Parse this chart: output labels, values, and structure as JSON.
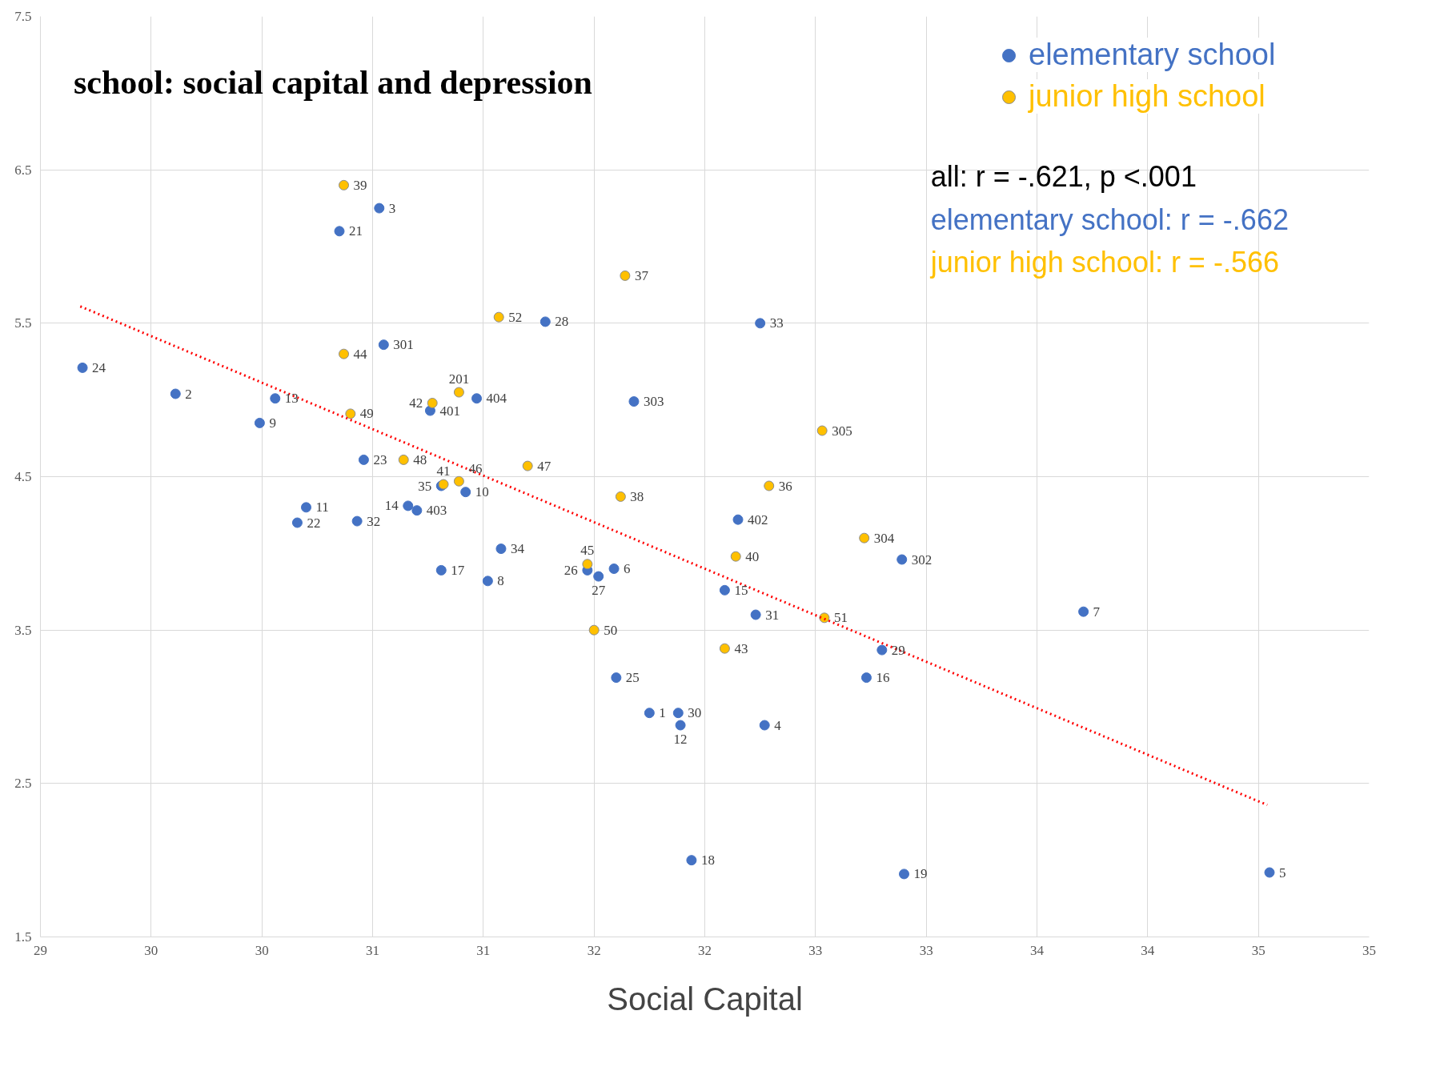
{
  "chart_data": {
    "type": "scatter",
    "title": "school: social capital and depression",
    "xlabel": "Social Capital",
    "xlim": [
      29,
      35
    ],
    "ylim": [
      1.5,
      7.5
    ],
    "xticks": [
      29,
      {
        "value": 29.5,
        "label": "30"
      },
      30,
      {
        "value": 30.5,
        "label": "31"
      },
      31,
      {
        "value": 31.5,
        "label": "32"
      },
      32,
      {
        "value": 32.5,
        "label": "33"
      },
      33,
      {
        "value": 33.5,
        "label": "34"
      },
      34,
      {
        "value": 34.5,
        "label": "35"
      },
      35
    ],
    "yticks": [
      1.5,
      2.5,
      3.5,
      4.5,
      5.5,
      6.5,
      7.5
    ],
    "grid": true,
    "legend": "top right",
    "annotations": [
      "all: r = -.621, p <.001",
      "elementary school: r = -.662",
      "junior high school: r = -.566",
      {
        "text": "24",
        "x": 29.19,
        "y": 5.21
      },
      {
        "text": "2",
        "x": 29.61,
        "y": 5.04
      },
      {
        "text": "13",
        "x": 30.06,
        "y": 5.01
      },
      {
        "text": "9",
        "x": 29.99,
        "y": 4.85
      },
      {
        "text": "3",
        "x": 30.53,
        "y": 6.25
      },
      {
        "text": "21",
        "x": 30.35,
        "y": 6.1
      },
      {
        "text": "301",
        "x": 30.55,
        "y": 5.36
      },
      {
        "text": "23",
        "x": 30.46,
        "y": 4.61
      },
      {
        "text": "11",
        "x": 30.2,
        "y": 4.3
      },
      {
        "text": "22",
        "x": 30.16,
        "y": 4.2
      },
      {
        "text": "32",
        "x": 30.43,
        "y": 4.21
      },
      {
        "text": "14",
        "x": 30.66,
        "y": 4.31
      },
      {
        "text": "403",
        "x": 30.7,
        "y": 4.28
      },
      {
        "text": "401",
        "x": 30.76,
        "y": 4.93
      },
      {
        "text": "35",
        "x": 30.81,
        "y": 4.44
      },
      {
        "text": "10",
        "x": 30.92,
        "y": 4.4
      },
      {
        "text": "404",
        "x": 30.97,
        "y": 5.01
      },
      {
        "text": "17",
        "x": 30.81,
        "y": 3.89
      },
      {
        "text": "8",
        "x": 31.02,
        "y": 3.82
      },
      {
        "text": "34",
        "x": 31.08,
        "y": 4.03
      },
      {
        "text": "28",
        "x": 31.28,
        "y": 5.51
      },
      {
        "text": "303",
        "x": 31.68,
        "y": 4.99
      },
      {
        "text": "26",
        "x": 31.47,
        "y": 3.89
      },
      {
        "text": "27",
        "x": 31.52,
        "y": 3.85
      },
      {
        "text": "6",
        "x": 31.59,
        "y": 3.9
      },
      {
        "text": "25",
        "x": 31.6,
        "y": 3.19
      },
      {
        "text": "1",
        "x": 31.75,
        "y": 2.96
      },
      {
        "text": "30",
        "x": 31.88,
        "y": 2.96
      },
      {
        "text": "12",
        "x": 31.89,
        "y": 2.88
      },
      {
        "text": "18",
        "x": 31.94,
        "y": 2.0
      },
      {
        "text": "33",
        "x": 32.25,
        "y": 5.5
      },
      {
        "text": "402",
        "x": 32.15,
        "y": 4.22
      },
      {
        "text": "15",
        "x": 32.09,
        "y": 3.76
      },
      {
        "text": "31",
        "x": 32.23,
        "y": 3.6
      },
      {
        "text": "4",
        "x": 32.27,
        "y": 2.88
      },
      {
        "text": "29",
        "x": 32.8,
        "y": 3.37
      },
      {
        "text": "16",
        "x": 32.73,
        "y": 3.19
      },
      {
        "text": "302",
        "x": 32.89,
        "y": 3.96
      },
      {
        "text": "19",
        "x": 32.9,
        "y": 1.91
      },
      {
        "text": "7",
        "x": 33.71,
        "y": 3.62
      },
      {
        "text": "5",
        "x": 34.55,
        "y": 1.92
      },
      {
        "text": "39",
        "x": 30.37,
        "y": 6.4
      },
      {
        "text": "44",
        "x": 30.37,
        "y": 5.3
      },
      {
        "text": "49",
        "x": 30.4,
        "y": 4.91
      },
      {
        "text": "48",
        "x": 30.64,
        "y": 4.61
      },
      {
        "text": "42",
        "x": 30.77,
        "y": 4.98
      },
      {
        "text": "201",
        "x": 30.89,
        "y": 5.05
      },
      {
        "text": "41",
        "x": 30.82,
        "y": 4.45
      },
      {
        "text": "46",
        "x": 30.89,
        "y": 4.47
      },
      {
        "text": "47",
        "x": 31.2,
        "y": 4.57
      },
      {
        "text": "52",
        "x": 31.07,
        "y": 5.54
      },
      {
        "text": "37",
        "x": 31.64,
        "y": 5.81
      },
      {
        "text": "45",
        "x": 31.47,
        "y": 3.93
      },
      {
        "text": "50",
        "x": 31.5,
        "y": 3.5
      },
      {
        "text": "38",
        "x": 31.62,
        "y": 4.37
      },
      {
        "text": "40",
        "x": 32.14,
        "y": 3.98
      },
      {
        "text": "43",
        "x": 32.09,
        "y": 3.38
      },
      {
        "text": "51",
        "x": 32.54,
        "y": 3.58
      },
      {
        "text": "36",
        "x": 32.29,
        "y": 4.44
      },
      {
        "text": "305",
        "x": 32.53,
        "y": 4.8
      },
      {
        "text": "304",
        "x": 32.72,
        "y": 4.1
      }
    ],
    "series": [
      {
        "name": "elementary school",
        "color": "#4472c4",
        "marker": "circle",
        "x": [
          29.19,
          29.61,
          30.06,
          29.99,
          30.53,
          30.35,
          30.55,
          30.46,
          30.2,
          30.16,
          30.43,
          30.66,
          30.7,
          30.76,
          30.81,
          30.92,
          30.97,
          30.81,
          31.02,
          31.08,
          31.28,
          31.68,
          31.47,
          31.52,
          31.59,
          31.6,
          31.75,
          31.88,
          31.89,
          31.94,
          32.25,
          32.15,
          32.09,
          32.23,
          32.27,
          32.8,
          32.73,
          32.89,
          32.9,
          33.71,
          34.55
        ],
        "values": [
          5.21,
          5.04,
          5.01,
          4.85,
          6.25,
          6.1,
          5.36,
          4.61,
          4.3,
          4.2,
          4.21,
          4.31,
          4.28,
          4.93,
          4.44,
          4.4,
          5.01,
          3.89,
          3.82,
          4.03,
          5.51,
          4.99,
          3.89,
          3.85,
          3.9,
          3.19,
          2.96,
          2.96,
          2.88,
          2.0,
          5.5,
          4.22,
          3.76,
          3.6,
          2.88,
          3.37,
          3.19,
          3.96,
          1.91,
          3.62,
          1.92
        ]
      },
      {
        "name": "junior high school",
        "color": "#ffc000",
        "marker": "circle",
        "x": [
          30.37,
          30.37,
          30.4,
          30.64,
          30.77,
          30.89,
          30.82,
          30.89,
          31.2,
          31.07,
          31.64,
          31.47,
          31.5,
          31.62,
          32.14,
          32.09,
          32.54,
          32.29,
          32.53,
          32.72
        ],
        "values": [
          6.4,
          5.3,
          4.91,
          4.61,
          4.98,
          5.05,
          4.45,
          4.47,
          4.57,
          5.54,
          5.81,
          3.93,
          3.5,
          4.37,
          3.98,
          3.38,
          3.58,
          4.44,
          4.8,
          4.1
        ]
      },
      {
        "type": "line",
        "color": "#ff0000",
        "line_style": "dotted",
        "x": [
          29.18,
          34.54
        ],
        "values": [
          5.61,
          2.36
        ]
      }
    ]
  }
}
